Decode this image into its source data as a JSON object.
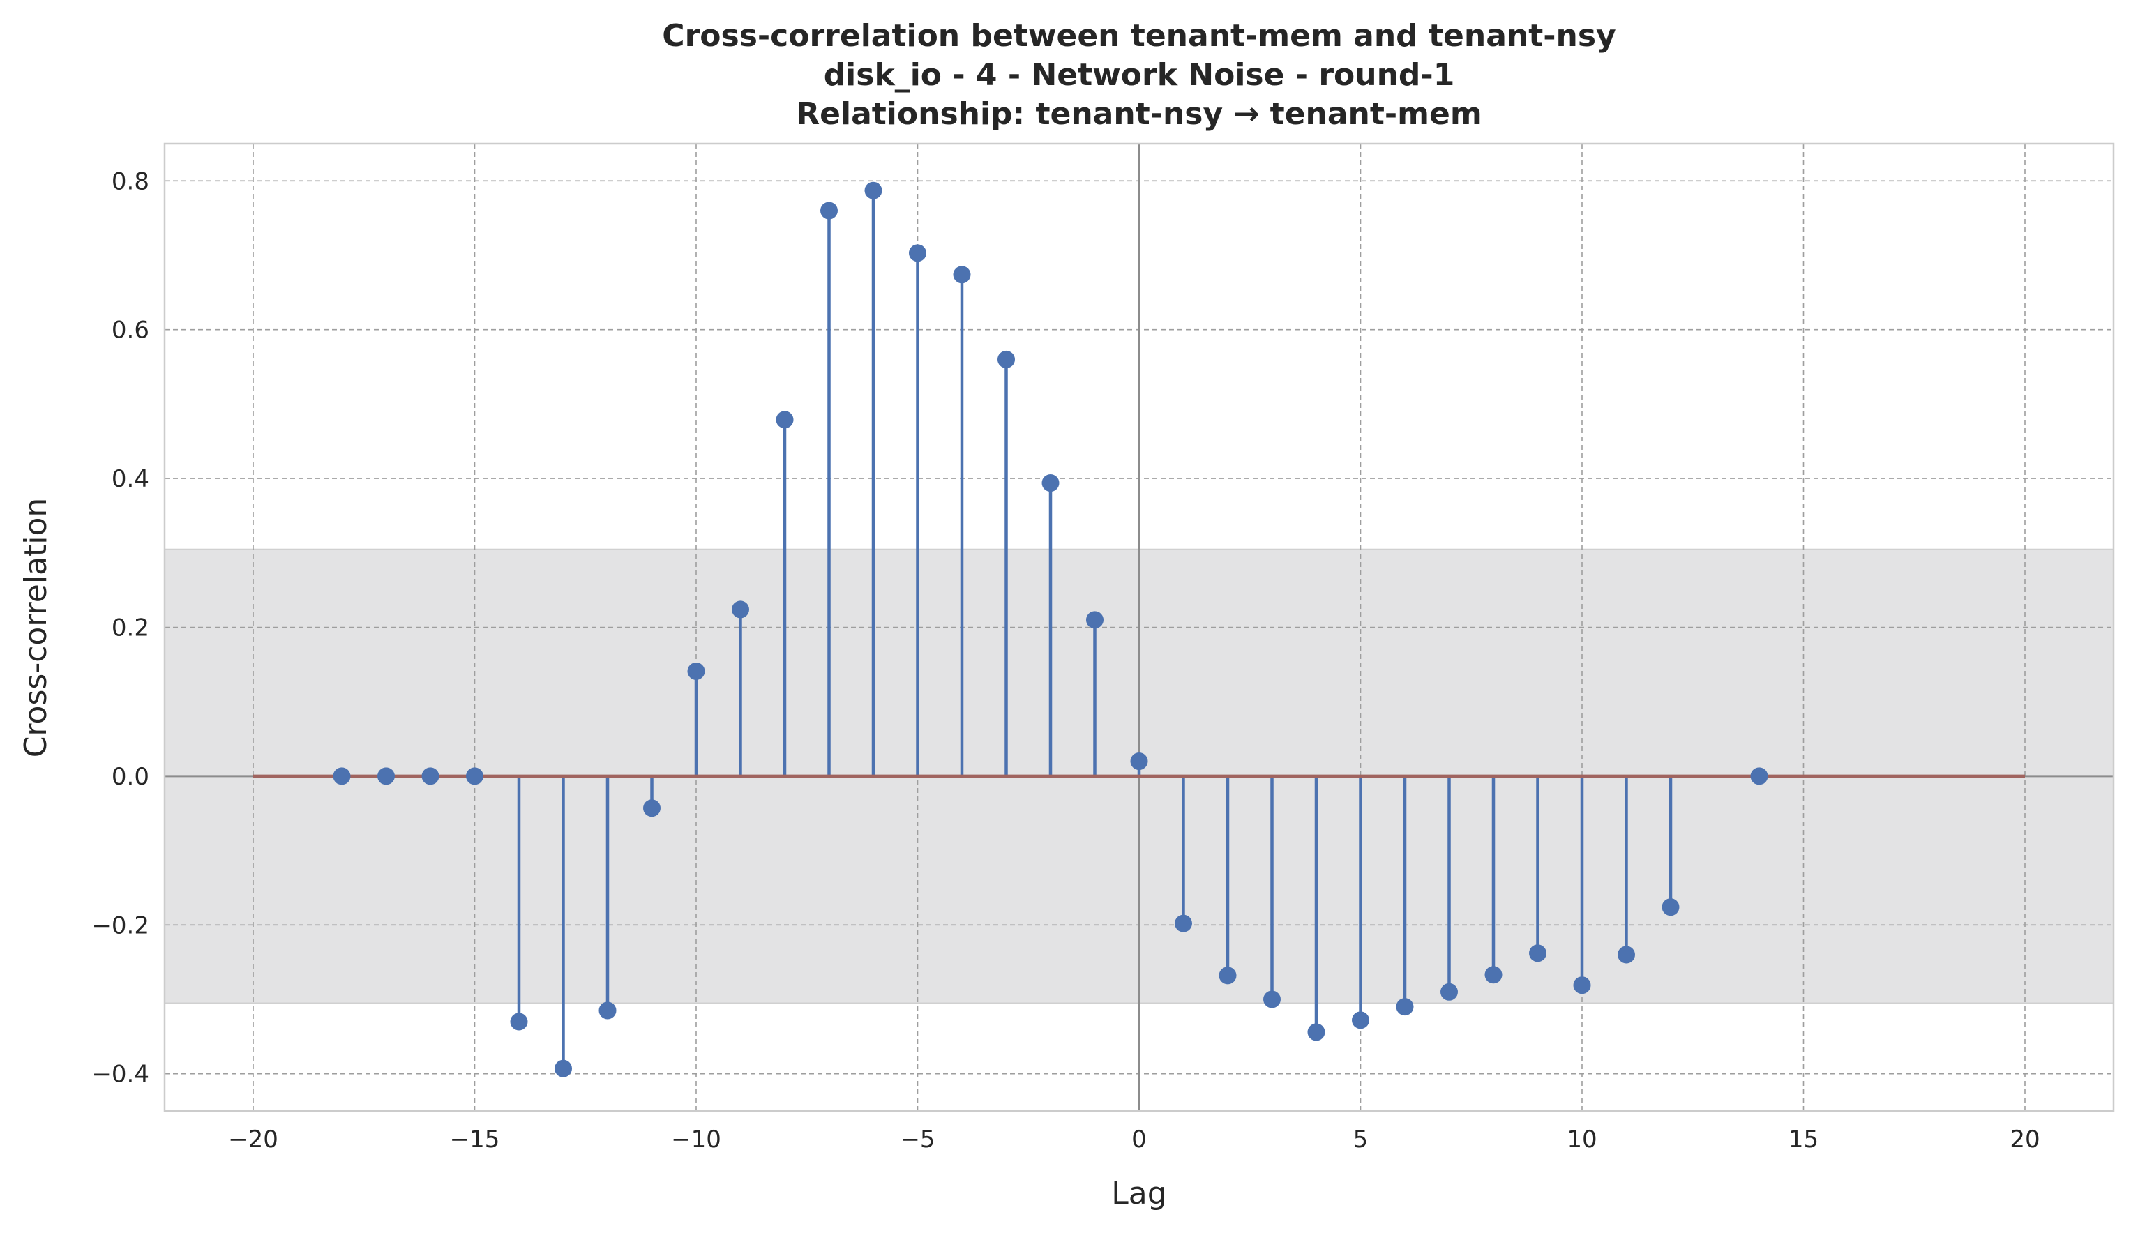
{
  "chart_data": {
    "type": "stem",
    "title_lines": [
      "Cross-correlation between tenant-mem and tenant-nsy",
      "disk_io - 4 - Network Noise - round-1",
      "Relationship: tenant-nsy → tenant-mem"
    ],
    "xlabel": "Lag",
    "ylabel": "Cross-correlation",
    "xlim": [
      -22,
      22
    ],
    "ylim": [
      -0.45,
      0.85
    ],
    "xticks": [
      -20,
      -15,
      -10,
      -5,
      0,
      5,
      10,
      15,
      20
    ],
    "xtick_labels": [
      "−20",
      "−15",
      "−10",
      "−5",
      "0",
      "5",
      "10",
      "15",
      "20"
    ],
    "yticks": [
      -0.4,
      -0.2,
      0.0,
      0.2,
      0.4,
      0.6,
      0.8
    ],
    "ytick_labels": [
      "−0.4",
      "−0.2",
      "0.0",
      "0.2",
      "0.4",
      "0.6",
      "0.8"
    ],
    "grid": true,
    "confidence_band": [
      -0.305,
      0.305
    ],
    "baseline_range": [
      -20,
      20
    ],
    "vertical_line_x": 0,
    "series": [
      {
        "lags": [
          -18,
          -17,
          -16,
          -15,
          -14,
          -13,
          -12,
          -11,
          -10,
          -9,
          -8,
          -7,
          -6,
          -5,
          -4,
          -3,
          -2,
          -1,
          0,
          1,
          2,
          3,
          4,
          5,
          6,
          7,
          8,
          9,
          10,
          11,
          12,
          14
        ],
        "values": [
          0.0,
          0.0,
          0.0,
          0.0,
          -0.33,
          -0.393,
          -0.315,
          -0.043,
          0.141,
          0.224,
          0.479,
          0.76,
          0.787,
          0.703,
          0.674,
          0.56,
          0.394,
          0.21,
          0.02,
          -0.198,
          -0.268,
          -0.3,
          -0.344,
          -0.328,
          -0.31,
          -0.29,
          -0.267,
          -0.238,
          -0.281,
          -0.24,
          -0.176,
          0.0
        ]
      }
    ],
    "colors": {
      "stem": "#4c72b0",
      "marker": "#4c72b0",
      "baseline": "#a0645f",
      "band": "#e3e3e4",
      "zero_vline": "#8c8c8c",
      "grid": "#9e9e9e",
      "frame": "#cccccc"
    }
  }
}
